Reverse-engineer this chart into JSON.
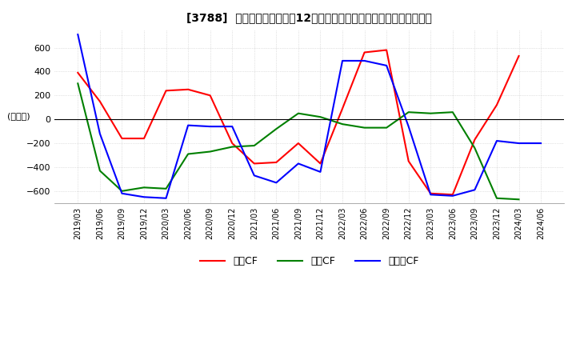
{
  "title": "[3788]  キャッシュフローの12か月移動合計の対前年同期増減額の推移",
  "ylabel": "(百万円)",
  "ylim": [
    -700,
    750
  ],
  "yticks": [
    -600,
    -400,
    -200,
    0,
    200,
    400,
    600
  ],
  "x_labels": [
    "2019/03",
    "2019/06",
    "2019/09",
    "2019/12",
    "2020/03",
    "2020/06",
    "2020/09",
    "2020/12",
    "2021/03",
    "2021/06",
    "2021/09",
    "2021/12",
    "2022/03",
    "2022/06",
    "2022/09",
    "2022/12",
    "2023/03",
    "2023/06",
    "2023/09",
    "2023/12",
    "2024/03",
    "2024/06"
  ],
  "legend_labels": [
    "営業CF",
    "投資CF",
    "フリーCF"
  ],
  "colors": {
    "営業CF": "#ff0000",
    "投資CF": "#008000",
    "フリーCF": "#0000ff"
  },
  "series": {
    "営業CF": [
      390,
      150,
      -160,
      -160,
      240,
      250,
      200,
      -200,
      -370,
      -360,
      -200,
      -370,
      90,
      560,
      580,
      -350,
      -620,
      -630,
      -170,
      120,
      530,
      null
    ],
    "投資CF": [
      300,
      -430,
      -600,
      -570,
      -580,
      -290,
      -270,
      -230,
      -220,
      -80,
      50,
      20,
      -40,
      -70,
      -70,
      60,
      50,
      60,
      -240,
      -660,
      -670,
      null
    ],
    "フリーCF": [
      710,
      -120,
      -620,
      -650,
      -660,
      -50,
      -60,
      -60,
      -470,
      -530,
      -370,
      -440,
      490,
      490,
      450,
      -60,
      -630,
      -640,
      -590,
      -180,
      -200,
      -200
    ]
  },
  "background_color": "#ffffff",
  "grid_color": "#c8c8c8",
  "grid_style": "dotted"
}
